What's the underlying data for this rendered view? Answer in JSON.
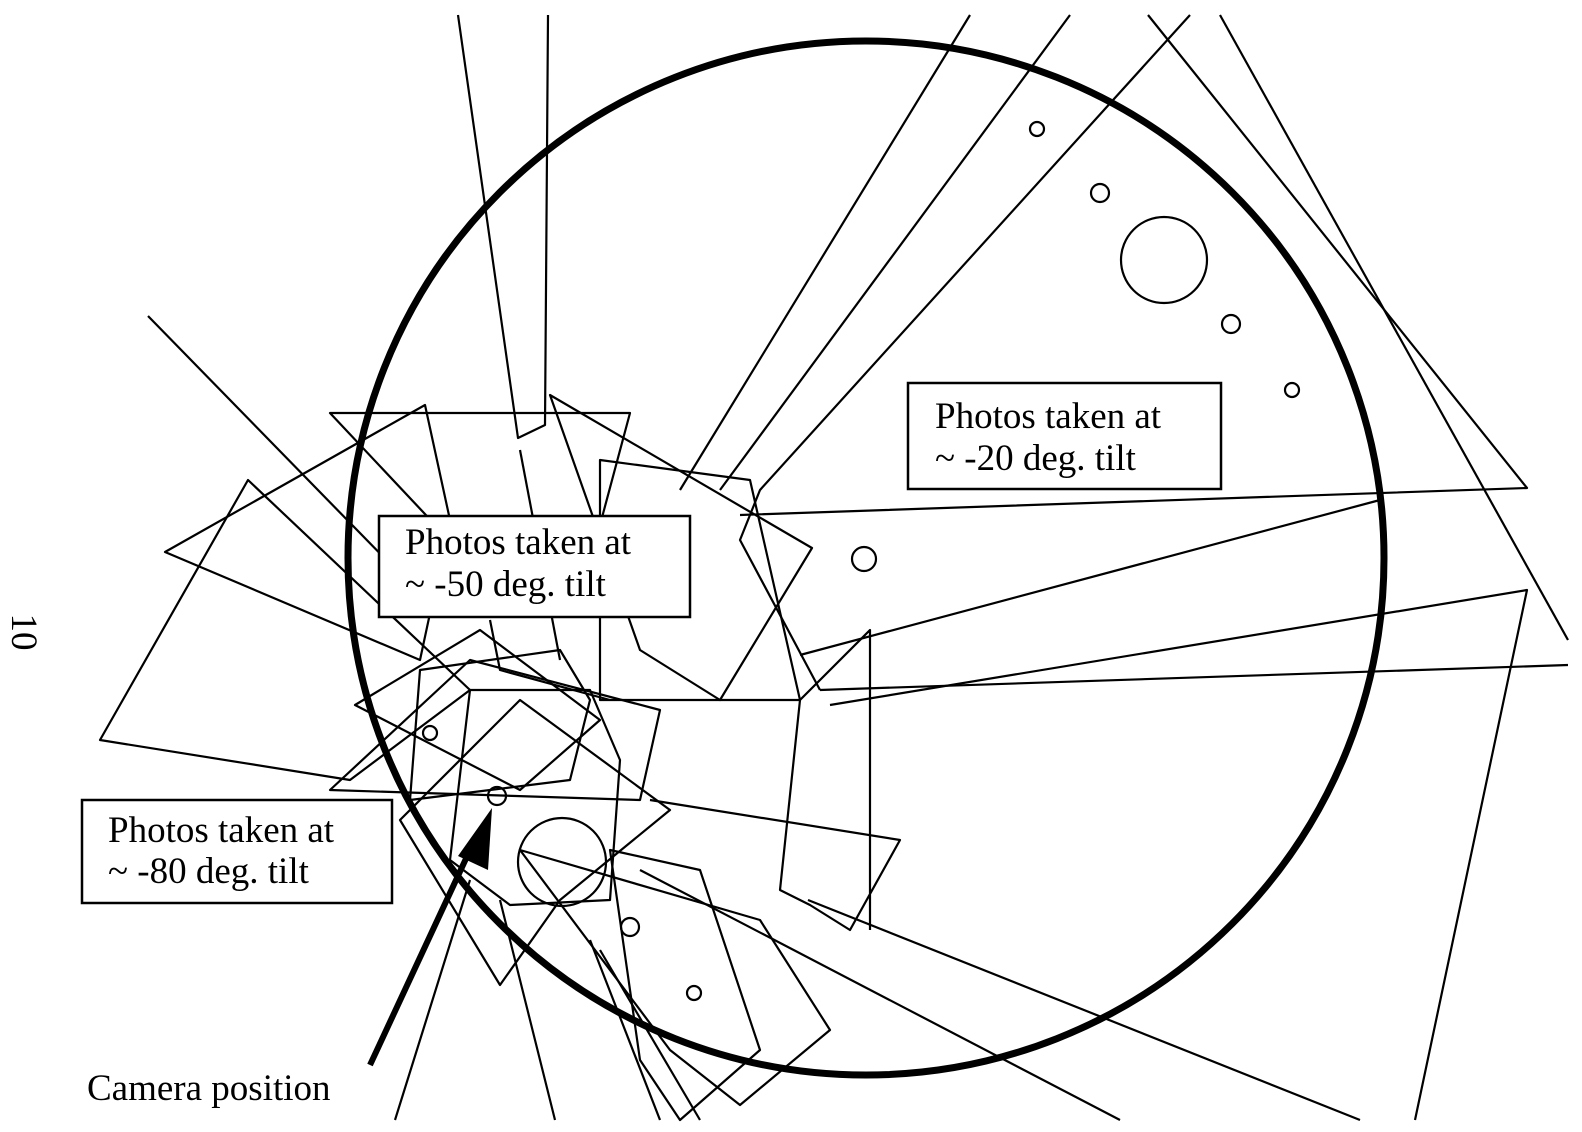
{
  "labels": [
    {
      "lines": [
        "Photos taken at",
        "~ -20 deg. tilt"
      ]
    },
    {
      "lines": [
        "Photos taken at",
        "~ -50 deg. tilt"
      ]
    },
    {
      "lines": [
        "Photos taken at",
        "~ -80 deg. tilt"
      ]
    }
  ],
  "camera_label": "Camera position",
  "page_number": "10"
}
